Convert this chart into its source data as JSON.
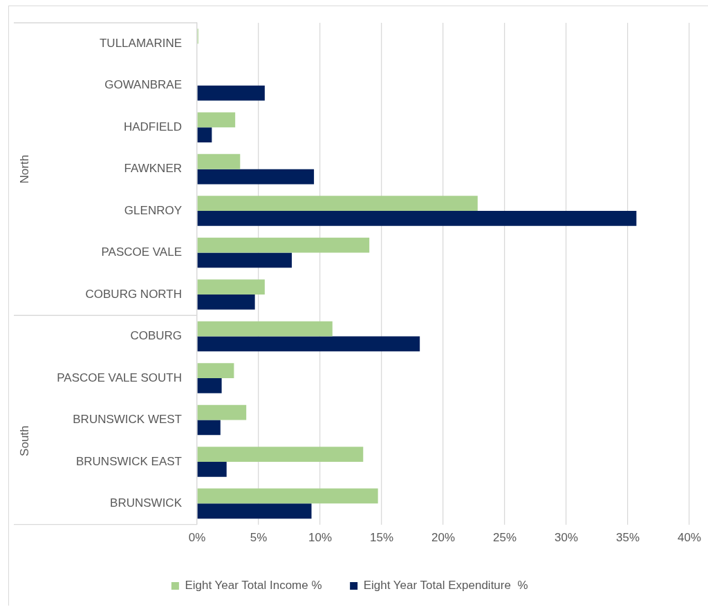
{
  "chart_data": {
    "type": "bar",
    "orientation": "horizontal",
    "categories": [
      "TULLAMARINE",
      "GOWANBRAE",
      "HADFIELD",
      "FAWKNER",
      "GLENROY",
      "PASCOE VALE",
      "COBURG NORTH",
      "COBURG",
      "PASCOE VALE SOUTH",
      "BRUNSWICK WEST",
      "BRUNSWICK EAST",
      "BRUNSWICK"
    ],
    "series": [
      {
        "name": "Eight Year Total Income %",
        "color": "#a9d18e",
        "values": [
          0.1,
          0,
          3.1,
          3.5,
          22.8,
          14.0,
          5.5,
          11.0,
          3.0,
          4.0,
          13.5,
          14.7
        ]
      },
      {
        "name": "Eight Year Total Expenditure  %",
        "color": "#001f5c",
        "values": [
          0,
          5.5,
          1.2,
          9.5,
          35.7,
          7.7,
          4.7,
          18.1,
          2.0,
          1.9,
          2.4,
          9.3
        ]
      }
    ],
    "xlim": [
      0,
      40
    ],
    "xticks": [
      {
        "value": 0,
        "label": "0%"
      },
      {
        "value": 5,
        "label": "5%"
      },
      {
        "value": 10,
        "label": "10%"
      },
      {
        "value": 15,
        "label": "15%"
      },
      {
        "value": 20,
        "label": "20%"
      },
      {
        "value": 25,
        "label": "25%"
      },
      {
        "value": 30,
        "label": "30%"
      },
      {
        "value": 35,
        "label": "35%"
      },
      {
        "value": 40,
        "label": "40%"
      }
    ],
    "annotations": [
      "North",
      "South"
    ],
    "grid": "x",
    "legend": "bottom"
  }
}
